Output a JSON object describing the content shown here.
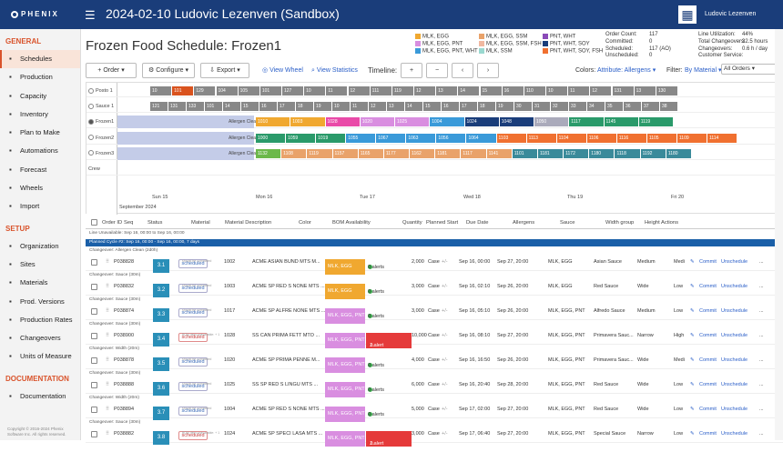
{
  "app": {
    "logo": "PHENIX",
    "title": "2024-02-10 Ludovic Lezenven (Sandbox)",
    "user": "Ludovic Lezenven"
  },
  "sidebar": {
    "general_label": "GENERAL",
    "general": [
      {
        "label": "Schedules",
        "icon": "calendar-icon"
      },
      {
        "label": "Production",
        "icon": "factory-icon"
      },
      {
        "label": "Capacity",
        "icon": "capacity-icon"
      },
      {
        "label": "Inventory",
        "icon": "inventory-icon"
      },
      {
        "label": "Plan to Make",
        "icon": "plan-icon"
      },
      {
        "label": "Automations",
        "icon": "automation-icon"
      },
      {
        "label": "Forecast",
        "icon": "forecast-icon"
      },
      {
        "label": "Wheels",
        "icon": "wheel-icon"
      },
      {
        "label": "Import",
        "icon": "import-icon"
      }
    ],
    "setup_label": "SETUP",
    "setup": [
      {
        "label": "Organization",
        "icon": "organization-icon"
      },
      {
        "label": "Sites",
        "icon": "sites-icon"
      },
      {
        "label": "Materials",
        "icon": "materials-icon"
      },
      {
        "label": "Prod. Versions",
        "icon": "versions-icon"
      },
      {
        "label": "Production Rates",
        "icon": "rates-icon"
      },
      {
        "label": "Changeovers",
        "icon": "changeover-icon"
      },
      {
        "label": "Units of Measure",
        "icon": "uom-icon"
      }
    ],
    "doc_label": "DOCUMENTATION",
    "docs": [
      {
        "label": "Documentation",
        "icon": "docs-icon"
      }
    ],
    "copyright": "Copyright © 2016-2024 Phenix Software Inc. All rights reserved."
  },
  "page": {
    "title": "Frozen Food Schedule: Frozen1"
  },
  "legend": [
    {
      "label": "MLK, EGG",
      "color": "#f0a830"
    },
    {
      "label": "MLK, EGG, PNT",
      "color": "#d98ee0"
    },
    {
      "label": "MLK, EGG, PNT, WHT",
      "color": "#3a9ad9"
    },
    {
      "label": "MLK, EGG, SSM",
      "color": "#e9a26a"
    },
    {
      "label": "MLK, EGG, SSM, FSH",
      "color": "#f0b8a0"
    },
    {
      "label": "MLK, SSM",
      "color": "#9ad9d0"
    },
    {
      "label": "PNT, WHT",
      "color": "#8a4ab8"
    },
    {
      "label": "PNT, WHT, SOY",
      "color": "#1a3d7a"
    },
    {
      "label": "PNT, WHT, SOY, FSH",
      "color": "#f07030"
    }
  ],
  "order_stats": [
    {
      "k": "Order Count:",
      "v": "117"
    },
    {
      "k": "Committed:",
      "v": "0"
    },
    {
      "k": "Scheduled:",
      "v": "117 (AO)"
    },
    {
      "k": "Unscheduled:",
      "v": "0"
    }
  ],
  "line_stats": [
    {
      "k": "Line Utilization:",
      "v": "44%"
    },
    {
      "k": "Total Changeovers:",
      "v": "32.5 hours"
    },
    {
      "k": "Changeovers:",
      "v": "0.6 h / day"
    },
    {
      "k": "Customer Service:",
      "v": ""
    }
  ],
  "toolbar": {
    "order": "+ Order",
    "configure": "Configure",
    "export": "Export",
    "view_wheel": "View Wheel",
    "view_stats": "View Statistics",
    "timeline": "Timeline:",
    "colors": "Colors:",
    "colors_val": "Attribute: Allergens",
    "filter": "Filter:",
    "filter_val": "By Material",
    "filter_select": "All Orders"
  },
  "gantt": {
    "lines": [
      "Posto 1",
      "Sauce 1",
      "Frozen1",
      "Frozen2",
      "Frozen3",
      "Crew"
    ],
    "dates": [
      "Sun 15",
      "Mon 16",
      "Tue 17",
      "Wed 18",
      "Thu 19",
      "Fri 20"
    ],
    "month": "September 2024",
    "allergen_label": "Allergen Clean"
  },
  "grid": {
    "headers": [
      "Order ID",
      "Seq",
      "Status",
      "Material",
      "Material Description",
      "Color",
      "BOM Availability",
      "Quantity",
      "Planned Start",
      "Due Date",
      "Allergens",
      "Sauce",
      "Width group",
      "Height",
      "Actions"
    ],
    "line_unavail": "Line Unavailable: Sep 16, 00:00 to Sep 16, 00:00",
    "cycle": "Planned Cycle #2: Sep 16, 00:00 - Sep 16, 00:00, 7 days",
    "rows": [
      {
        "pre": "Changeover: Allergen Clean (2d0h)",
        "id": "P038828",
        "seq": "3.1",
        "status": "scheduled",
        "sub": "should be committed",
        "mat": "1002",
        "desc": "ACME ASIAN BUND MTS M...",
        "color": "MLK, EGG",
        "ccol": "#f0a830",
        "bom": "0 alerts",
        "bred": false,
        "qty": "2,000",
        "start": "Sep 16, 00:00",
        "due": "Sep 27, 20:00",
        "all": "MLK, EGG",
        "sauce": "Asian Sauce",
        "width": "Medium",
        "height": "Medi"
      },
      {
        "pre": "Changeover: Sauce (30m)",
        "id": "P038832",
        "seq": "3.2",
        "status": "scheduled",
        "sub": "should be committed",
        "mat": "1003",
        "desc": "ACME SP RED S NONE MTS ...",
        "color": "MLK, EGG",
        "ccol": "#f0a830",
        "bom": "0 alerts",
        "bred": false,
        "qty": "3,000",
        "start": "Sep 16, 02:10",
        "due": "Sep 26, 20:00",
        "all": "MLK, EGG",
        "sauce": "Red Sauce",
        "width": "Wide",
        "height": "Low"
      },
      {
        "pre": "Changeover: Sauce (30m)",
        "id": "P038874",
        "seq": "3.3",
        "status": "scheduled",
        "sub": "should be committed",
        "mat": "1017",
        "desc": "ACME SP ALFRE NONE MTS ...",
        "color": "MLK, EGG, PNT",
        "ccol": "#d98ee0",
        "bom": "0 alerts",
        "bred": false,
        "qty": "3,000",
        "start": "Sep 16, 05:10",
        "due": "Sep 26, 20:00",
        "all": "MLK, EGG, PNT",
        "sauce": "Alfredo Sauce",
        "width": "Medium",
        "height": "Low"
      },
      {
        "pre": "Changeover: Sauce (30m)",
        "id": "P038900",
        "seq": "3.4",
        "status": "scheduled",
        "sub": "BOM item unavailable: + 1",
        "mat": "1028",
        "desc": "SS CAN PRIMA FETT MTO ...",
        "color": "MLK, EGG, PNT",
        "ccol": "#d98ee0",
        "bom": "1 alert",
        "bred": true,
        "qty": "10,000",
        "start": "Sep 16, 08:10",
        "due": "Sep 27, 20:00",
        "all": "MLK, EGG, PNT",
        "sauce": "Primavera Sauc...",
        "width": "Narrow",
        "height": "High"
      },
      {
        "pre": "Changeover: Width (20m)",
        "id": "P038878",
        "seq": "3.5",
        "status": "scheduled",
        "sub": "should be committed",
        "mat": "1020",
        "desc": "ACME SP PRIMA PENNE M...",
        "color": "MLK, EGG, PNT",
        "ccol": "#d98ee0",
        "bom": "0 alerts",
        "bred": false,
        "qty": "4,000",
        "start": "Sep 16, 16:50",
        "due": "Sep 26, 20:00",
        "all": "MLK, EGG, PNT",
        "sauce": "Primavera Sauc...",
        "width": "Wide",
        "height": "Medi"
      },
      {
        "pre": "Changeover: Sauce (30m)",
        "id": "P038888",
        "seq": "3.6",
        "status": "scheduled",
        "sub": "should be committed",
        "mat": "1025",
        "desc": "SS SP RED S LINGU MTS ...",
        "color": "MLK, EGG, PNT",
        "ccol": "#d98ee0",
        "bom": "0 alerts",
        "bred": false,
        "qty": "6,000",
        "start": "Sep 16, 20:40",
        "due": "Sep 28, 20:00",
        "all": "MLK, EGG, PNT",
        "sauce": "Red Sauce",
        "width": "Wide",
        "height": "Low"
      },
      {
        "pre": "Changeover: Width (20m)",
        "id": "P038894",
        "seq": "3.7",
        "status": "scheduled",
        "sub": "should be committed",
        "mat": "1004",
        "desc": "ACME SP RED S NONE MTS ...",
        "color": "MLK, EGG, PNT",
        "ccol": "#d98ee0",
        "bom": "0 alerts",
        "bred": false,
        "qty": "5,000",
        "start": "Sep 17, 02:00",
        "due": "Sep 27, 20:00",
        "all": "MLK, EGG, PNT",
        "sauce": "Red Sauce",
        "width": "Wide",
        "height": "Low"
      },
      {
        "pre": "Changeover: Sauce (30m)",
        "id": "P038882",
        "seq": "3.8",
        "status": "scheduled",
        "sub": "BOM item unavailable: + 1",
        "mat": "1024",
        "desc": "ACME SP SPECI LASA MTS ...",
        "color": "MLK, EGG, PNT",
        "ccol": "#d98ee0",
        "bom": "1 alert",
        "bred": true,
        "qty": "3,000",
        "start": "Sep 17, 06:40",
        "due": "Sep 27, 20:00",
        "all": "MLK, EGG, PNT",
        "sauce": "Special Sauce",
        "width": "Narrow",
        "height": "Low"
      }
    ],
    "commit": "Commit",
    "unschedule": "Unschedule",
    "unit": "Case",
    "more": "..."
  },
  "gantt_bars": [
    {
      "row": 0,
      "items": [
        "10",
        "101",
        "129",
        "104",
        "105",
        "101",
        "127",
        "10",
        "11",
        "12",
        "111",
        "119",
        "12",
        "13",
        "14",
        "15",
        "16",
        "110",
        "10",
        "11",
        "12",
        "131",
        "13",
        "130"
      ],
      "colors": [
        "#888"
      ]
    },
    {
      "row": 1,
      "items": [
        "121",
        "131",
        "133",
        "101",
        "14",
        "15",
        "16",
        "17",
        "18",
        "19",
        "10",
        "11",
        "12",
        "13",
        "14",
        "15",
        "16",
        "17",
        "18",
        "19",
        "30",
        "31",
        "32",
        "33",
        "34",
        "35",
        "36",
        "37",
        "38"
      ],
      "colors": [
        "#888"
      ]
    },
    {
      "row": 2,
      "items": [
        "1010",
        "1003",
        "1028",
        "1020",
        "1025",
        "1004",
        "1024",
        "1048",
        "1050",
        "1117",
        "1145",
        "1119"
      ]
    },
    {
      "row": 3,
      "items": [
        "1000",
        "1059",
        "1019",
        "1055",
        "1067",
        "1063",
        "1056",
        "1064",
        "1103",
        "1113",
        "1104",
        "1106",
        "1116",
        "1105",
        "1109",
        "1114"
      ]
    },
    {
      "row": 4,
      "items": [
        "1132",
        "1108",
        "1119",
        "1157",
        "1165",
        "1177",
        "1162",
        "1181",
        "1117",
        "1141",
        "1101",
        "1181",
        "1172",
        "1180",
        "1118",
        "1192",
        "1180"
      ]
    }
  ]
}
